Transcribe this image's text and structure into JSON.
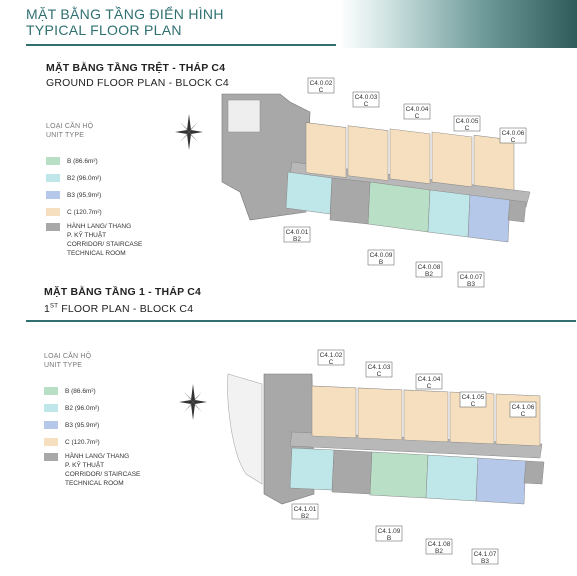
{
  "header": {
    "title_vn": "MẶT BẰNG TẦNG ĐIỂN HÌNH",
    "title_en": "TYPICAL FLOOR PLAN"
  },
  "colors": {
    "teal_text": "#2f6f70",
    "type_b": "#b9e0c7",
    "type_b2": "#bfe7ea",
    "type_b3": "#b5c8ea",
    "type_c": "#f6dfbe",
    "corridor": "#a8a8a8"
  },
  "sections": [
    {
      "title_vn": "MẶT BẰNG TẦNG TRỆT - THÁP C4",
      "title_en": "GROUND FLOOR PLAN - BLOCK C4",
      "legend_title_vn": "LOẠI CĂN HỘ",
      "legend_title_en": "UNIT TYPE",
      "legend": [
        {
          "label": "B (86.6m²)"
        },
        {
          "label": "B2 (96.0m²)"
        },
        {
          "label": "B3 (95.9m²)"
        },
        {
          "label": "C (120.7m²)"
        }
      ],
      "legend_corridor_vn1": "HÀNH LANG/ THANG",
      "legend_corridor_vn2": "P. KỸ THUẬT",
      "legend_corridor_en1": "CORRIDOR/ STAIRCASE",
      "legend_corridor_en2": "TECHNICAL ROOM",
      "units": [
        {
          "code": "C4.0.02",
          "type": "C"
        },
        {
          "code": "C4.0.03",
          "type": "C"
        },
        {
          "code": "C4.0.04",
          "type": "C"
        },
        {
          "code": "C4.0.05",
          "type": "C"
        },
        {
          "code": "C4.0.06",
          "type": "C"
        },
        {
          "code": "C4.0.01",
          "type": "B2"
        },
        {
          "code": "C4.0.09",
          "type": "B"
        },
        {
          "code": "C4.0.08",
          "type": "B2"
        },
        {
          "code": "C4.0.07",
          "type": "B3"
        }
      ]
    },
    {
      "title_vn": "MẶT BẰNG TẦNG 1 - THÁP C4",
      "title_en_sup": "ST",
      "title_en_pre": "1",
      "title_en": "FLOOR PLAN - BLOCK C4",
      "legend_title_vn": "LOẠI CĂN HỘ",
      "legend_title_en": "UNIT TYPE",
      "legend": [
        {
          "label": "B (86.6m²)"
        },
        {
          "label": "B2 (96.0m²)"
        },
        {
          "label": "B3 (95.9m²)"
        },
        {
          "label": "C (120.7m²)"
        }
      ],
      "legend_corridor_vn1": "HÀNH LANG/ THANG",
      "legend_corridor_vn2": "P. KỸ THUẬT",
      "legend_corridor_en1": "CORRIDOR/ STAIRCASE",
      "legend_corridor_en2": "TECHNICAL ROOM",
      "units": [
        {
          "code": "C4.1.02",
          "type": "C"
        },
        {
          "code": "C4.1.03",
          "type": "C"
        },
        {
          "code": "C4.1.04",
          "type": "C"
        },
        {
          "code": "C4.1.05",
          "type": "C"
        },
        {
          "code": "C4.1.06",
          "type": "C"
        },
        {
          "code": "C4.1.01",
          "type": "B2"
        },
        {
          "code": "C4.1.09",
          "type": "B"
        },
        {
          "code": "C4.1.08",
          "type": "B2"
        },
        {
          "code": "C4.1.07",
          "type": "B3"
        }
      ]
    }
  ]
}
